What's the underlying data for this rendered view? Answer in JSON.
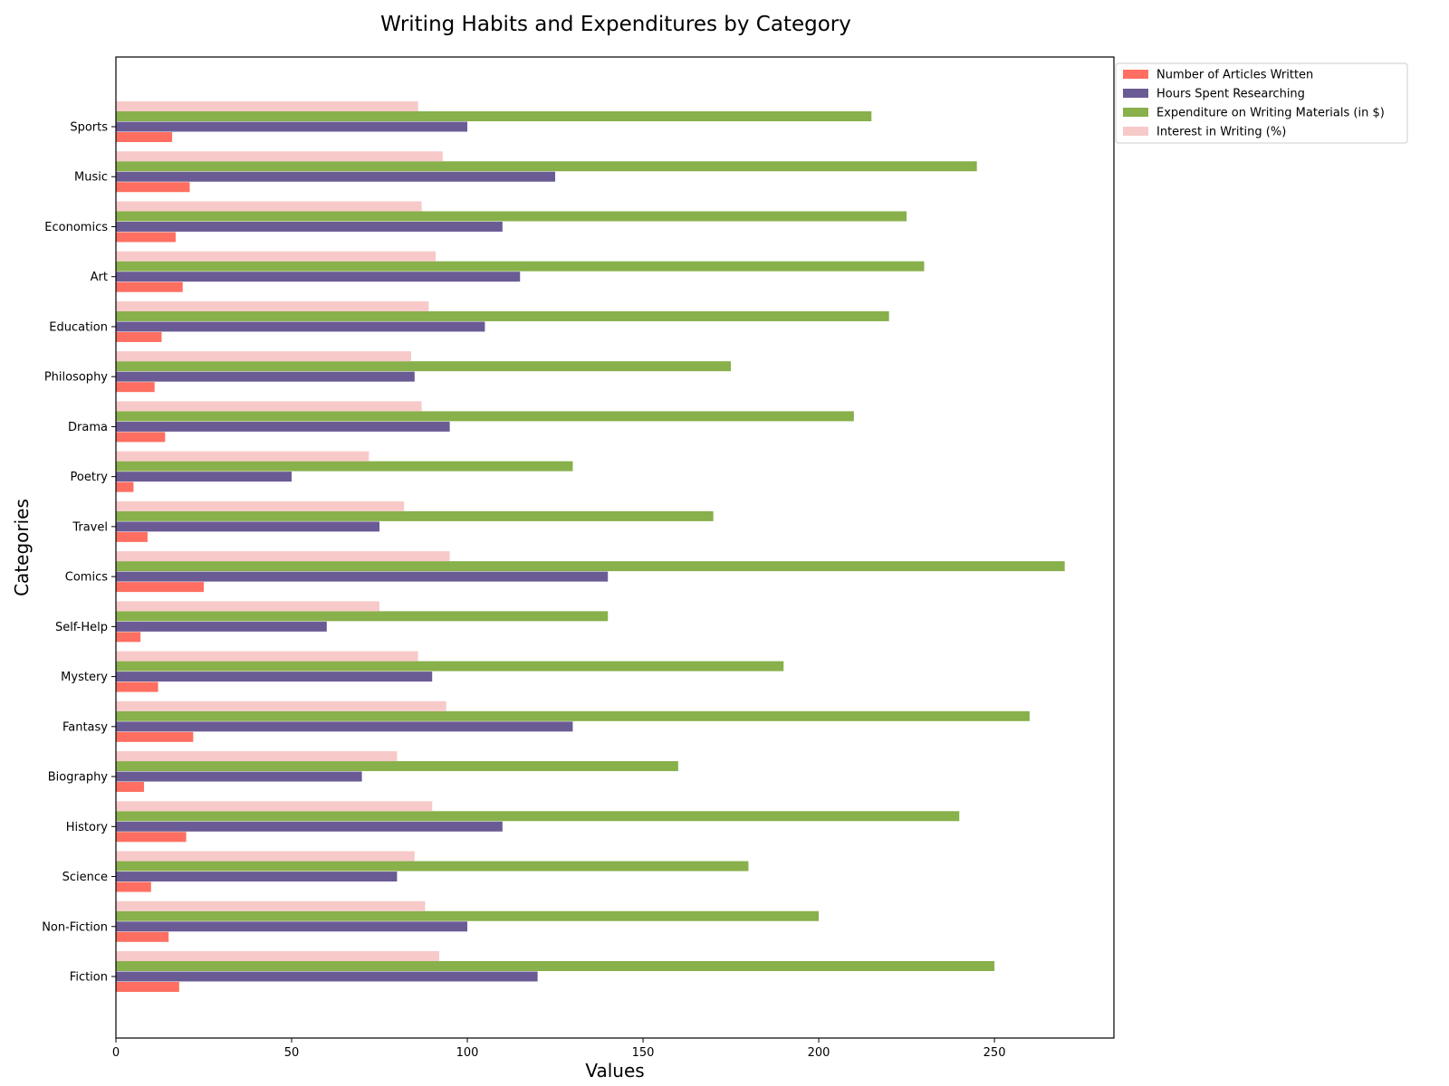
{
  "chart_data": {
    "type": "bar",
    "orientation": "horizontal",
    "title": "Writing Habits and Expenditures by Category",
    "xlabel": "Values",
    "ylabel": "Categories",
    "xlim": [
      0,
      284
    ],
    "xticks": [
      0,
      50,
      100,
      150,
      200,
      250
    ],
    "grid": false,
    "legend_position": "outside top-right",
    "categories": [
      "Fiction",
      "Non-Fiction",
      "Science",
      "History",
      "Biography",
      "Fantasy",
      "Mystery",
      "Self-Help",
      "Comics",
      "Travel",
      "Poetry",
      "Drama",
      "Philosophy",
      "Education",
      "Art",
      "Economics",
      "Music",
      "Sports"
    ],
    "series": [
      {
        "name": "Number of Articles Written",
        "color": "#ff6f61",
        "values": [
          18,
          15,
          10,
          20,
          8,
          22,
          12,
          7,
          25,
          9,
          5,
          14,
          11,
          13,
          19,
          17,
          21,
          16
        ]
      },
      {
        "name": "Hours Spent Researching",
        "color": "#6b5b95",
        "values": [
          120,
          100,
          80,
          110,
          70,
          130,
          90,
          60,
          140,
          75,
          50,
          95,
          85,
          105,
          115,
          110,
          125,
          100
        ]
      },
      {
        "name": "Expenditure on Writing Materials (in $)",
        "color": "#88b04b",
        "values": [
          250,
          200,
          180,
          240,
          160,
          260,
          190,
          140,
          270,
          170,
          130,
          210,
          175,
          220,
          230,
          225,
          245,
          215
        ]
      },
      {
        "name": "Interest in Writing (%)",
        "color": "#f7cac9",
        "values": [
          92,
          88,
          85,
          90,
          80,
          94,
          86,
          75,
          95,
          82,
          72,
          87,
          84,
          89,
          91,
          87,
          93,
          86
        ]
      }
    ]
  }
}
